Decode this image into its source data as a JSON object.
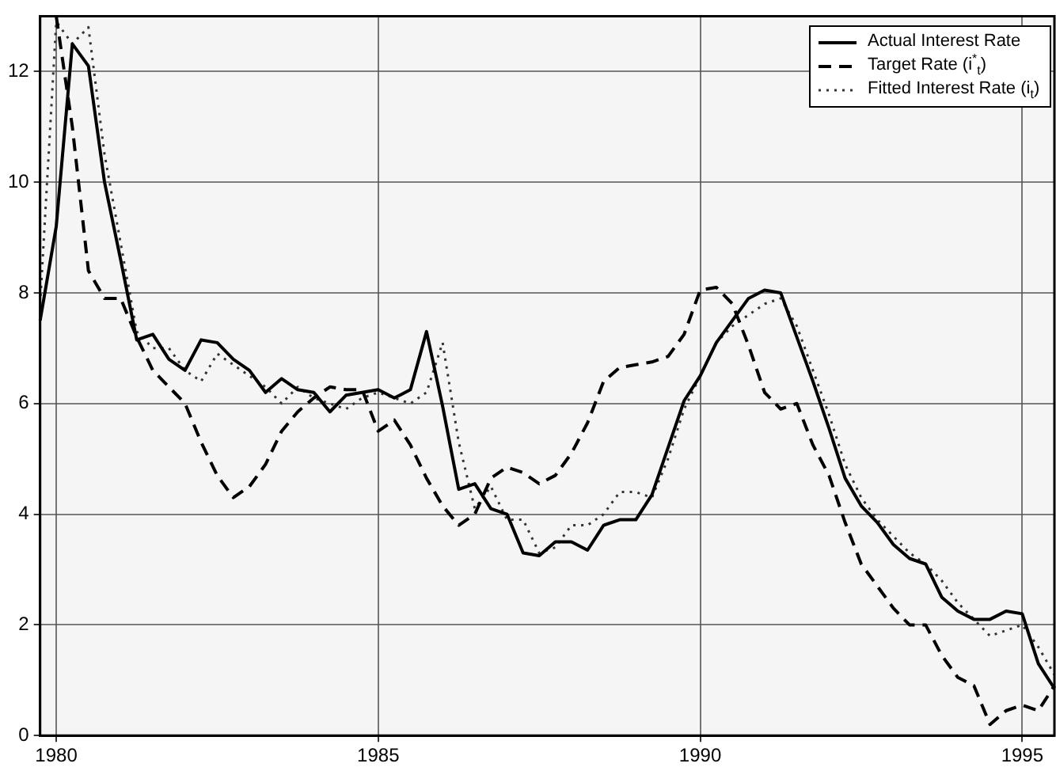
{
  "chart_data": {
    "type": "line",
    "x": [
      1979.75,
      1980,
      1980.25,
      1980.5,
      1980.75,
      1981,
      1981.25,
      1981.5,
      1981.75,
      1982,
      1982.25,
      1982.5,
      1982.75,
      1983,
      1983.25,
      1983.5,
      1983.75,
      1984,
      1984.25,
      1984.5,
      1984.75,
      1985,
      1985.25,
      1985.5,
      1985.75,
      1986,
      1986.25,
      1986.5,
      1986.75,
      1987,
      1987.25,
      1987.5,
      1987.75,
      1988,
      1988.25,
      1988.5,
      1988.75,
      1989,
      1989.25,
      1989.5,
      1989.75,
      1990,
      1990.25,
      1990.5,
      1990.75,
      1991,
      1991.25,
      1991.5,
      1991.75,
      1992,
      1992.25,
      1992.5,
      1992.75,
      1993,
      1993.25,
      1993.5,
      1993.75,
      1994,
      1994.25,
      1994.5,
      1994.75,
      1995,
      1995.25,
      1995.5
    ],
    "series": [
      {
        "name": "Actual Interest Rate",
        "color": "#000000",
        "line_style": "solid",
        "values": [
          7.5,
          9.2,
          12.5,
          12.1,
          10.0,
          8.6,
          7.15,
          7.25,
          6.8,
          6.6,
          7.15,
          7.1,
          6.8,
          6.6,
          6.2,
          6.45,
          6.25,
          6.2,
          5.85,
          6.15,
          6.2,
          6.25,
          6.1,
          6.25,
          7.3,
          5.95,
          4.45,
          4.55,
          4.1,
          4.0,
          3.3,
          3.25,
          3.5,
          3.5,
          3.35,
          3.8,
          3.9,
          3.9,
          4.35,
          5.2,
          6.05,
          6.5,
          7.1,
          7.5,
          7.9,
          8.05,
          8.0,
          7.2,
          6.4,
          5.55,
          4.65,
          4.15,
          3.85,
          3.45,
          3.2,
          3.1,
          2.5,
          2.25,
          2.1,
          2.1,
          2.25,
          2.2,
          1.3,
          0.85
        ]
      },
      {
        "name": "Target Rate (i$^{*}$$_{t}$)",
        "color": "#000000",
        "line_style": "dashed",
        "values": [
          null,
          13,
          11.0,
          8.4,
          7.9,
          7.9,
          7.2,
          6.6,
          6.3,
          6.0,
          5.3,
          4.7,
          4.3,
          4.5,
          4.9,
          5.5,
          5.85,
          6.1,
          6.3,
          6.25,
          6.25,
          5.5,
          5.7,
          5.25,
          4.65,
          4.15,
          3.8,
          4.0,
          4.65,
          4.85,
          4.75,
          4.55,
          4.7,
          5.1,
          5.65,
          6.4,
          6.65,
          6.7,
          6.75,
          6.85,
          7.25,
          8.05,
          8.1,
          7.8,
          7.05,
          6.2,
          5.9,
          6.0,
          5.25,
          4.7,
          3.85,
          3.1,
          2.7,
          2.3,
          2.0,
          2.0,
          1.45,
          1.05,
          0.9,
          0.2,
          0.45,
          0.55,
          0.45,
          0.9
        ]
      },
      {
        "name": "Fitted Interest Rate (i$_{t}$)",
        "color": "#333333",
        "line_style": "dotted",
        "values": [
          7.8,
          12.9,
          12.5,
          12.8,
          10.5,
          8.9,
          7.3,
          7.0,
          7.0,
          6.6,
          6.4,
          6.9,
          6.7,
          6.5,
          6.3,
          6.0,
          6.3,
          6.1,
          6.0,
          5.9,
          6.1,
          6.2,
          6.1,
          6.0,
          6.2,
          7.1,
          5.3,
          4.1,
          4.5,
          3.9,
          3.9,
          3.3,
          3.4,
          3.8,
          3.8,
          4.0,
          4.4,
          4.4,
          4.3,
          5.0,
          5.9,
          6.5,
          7.1,
          7.4,
          7.6,
          7.8,
          7.9,
          7.4,
          6.6,
          5.8,
          4.9,
          4.3,
          3.9,
          3.6,
          3.3,
          3.1,
          2.8,
          2.4,
          2.1,
          1.8,
          1.9,
          2.0,
          1.6,
          1.1
        ]
      }
    ],
    "xlim": [
      1979.75,
      1995.5
    ],
    "xticks": [
      1980,
      1985,
      1990,
      1995
    ],
    "ylim": [
      0,
      13
    ],
    "yticks": [
      0,
      2,
      4,
      6,
      8,
      10,
      12
    ],
    "grid": true,
    "legend": "top right",
    "marker": "none"
  }
}
